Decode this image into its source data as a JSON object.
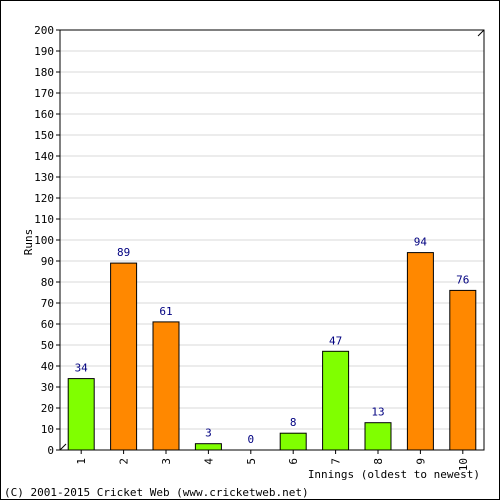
{
  "chart_data": {
    "type": "bar",
    "categories": [
      "1",
      "2",
      "3",
      "4",
      "5",
      "6",
      "7",
      "8",
      "9",
      "10"
    ],
    "values": [
      34,
      89,
      61,
      3,
      0,
      8,
      47,
      13,
      94,
      76
    ],
    "bar_colors": [
      "#80ff00",
      "#ff8800",
      "#ff8800",
      "#80ff00",
      "#80ff00",
      "#80ff00",
      "#80ff00",
      "#80ff00",
      "#ff8800",
      "#ff8800"
    ],
    "title": "",
    "xlabel": "Innings (oldest to newest)",
    "ylabel": "Runs",
    "ylim": [
      0,
      200
    ],
    "ytick_step": 10,
    "grid": true,
    "show_data_labels": true
  },
  "footer": {
    "copyright": "(C) 2001-2015 Cricket Web (www.cricketweb.net)"
  },
  "colors": {
    "label_text": "#000080",
    "bar_stroke": "#000000",
    "grid": "#d9d9d9",
    "frame": "#000000"
  }
}
